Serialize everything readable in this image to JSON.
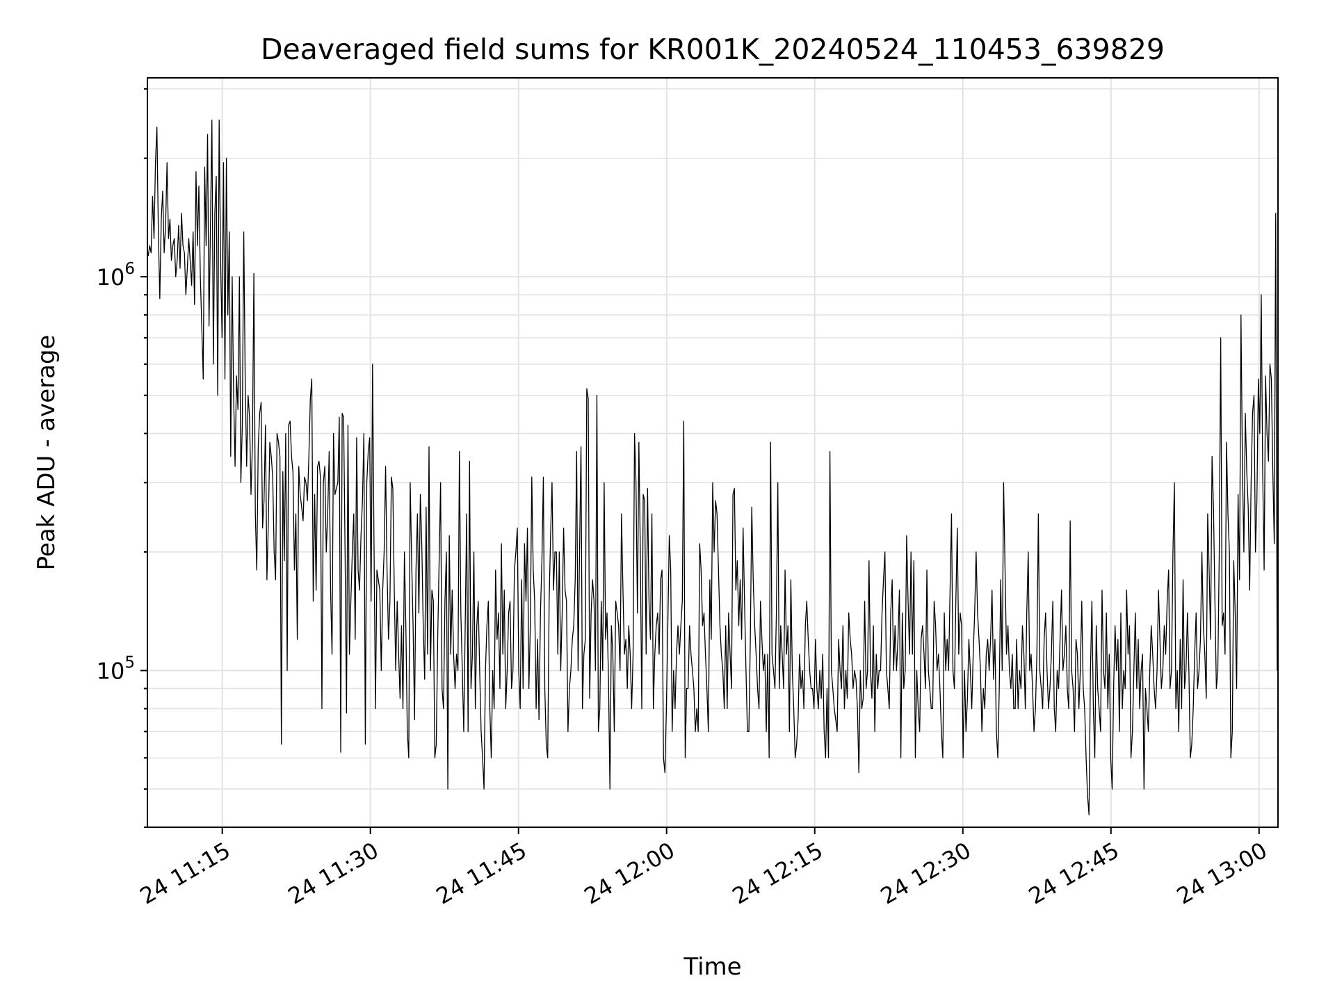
{
  "chart_data": {
    "type": "line",
    "title": "Deaveraged field sums for KR001K_20240524_110453_639829",
    "xlabel": "Time",
    "ylabel": "Peak ADU - average",
    "yscale": "log",
    "ylim": [
      40000,
      3200000
    ],
    "xlim": [
      "2024-05-24 11:07:25",
      "2024-05-24 13:01:55"
    ],
    "grid": true,
    "line_color": "#000000",
    "x_ticks": [
      {
        "time": "2024-05-24 11:15",
        "label": "24 11:15"
      },
      {
        "time": "2024-05-24 11:30",
        "label": "24 11:30"
      },
      {
        "time": "2024-05-24 11:45",
        "label": "24 11:45"
      },
      {
        "time": "2024-05-24 12:00",
        "label": "24 12:00"
      },
      {
        "time": "2024-05-24 12:15",
        "label": "24 12:15"
      },
      {
        "time": "2024-05-24 12:30",
        "label": "24 12:30"
      },
      {
        "time": "2024-05-24 12:45",
        "label": "24 12:45"
      },
      {
        "time": "2024-05-24 13:00",
        "label": "24 13:00"
      }
    ],
    "y_ticks": [
      {
        "value": 100000,
        "base": "10",
        "exp": "5"
      },
      {
        "value": 1000000,
        "base": "10",
        "exp": "6"
      }
    ],
    "series": [
      {
        "x_start": "2024-05-24 11:07:30",
        "x_end": "2024-05-24 13:01:50",
        "values": [
          1130000,
          1200000,
          1150000,
          1600000,
          1250000,
          1950000,
          2400000,
          1300000,
          880000,
          1400000,
          1650000,
          1150000,
          1350000,
          1950000,
          1250000,
          1400000,
          1100000,
          1200000,
          1250000,
          1000000,
          1100000,
          1350000,
          1050000,
          1450000,
          1200000,
          1150000,
          900000,
          1050000,
          1250000,
          1100000,
          950000,
          1300000,
          850000,
          1850000,
          1200000,
          1700000,
          1000000,
          750000,
          550000,
          1900000,
          1200000,
          2300000,
          750000,
          1350000,
          2500000,
          600000,
          1450000,
          1800000,
          500000,
          2500000,
          1100000,
          700000,
          1950000,
          550000,
          2000000,
          800000,
          1300000,
          350000,
          1000000,
          500000,
          330000,
          560000,
          460000,
          1000000,
          300000,
          420000,
          1300000,
          550000,
          330000,
          500000,
          440000,
          280000,
          380000,
          1020000,
          250000,
          180000,
          370000,
          450000,
          480000,
          230000,
          270000,
          420000,
          170000,
          240000,
          380000,
          350000,
          310000,
          200000,
          170000,
          400000,
          380000,
          350000,
          65000,
          320000,
          190000,
          400000,
          100000,
          420000,
          430000,
          350000,
          320000,
          180000,
          250000,
          120000,
          330000,
          280000,
          260000,
          240000,
          310000,
          300000,
          270000,
          350000,
          490000,
          550000,
          150000,
          280000,
          160000,
          330000,
          340000,
          310000,
          80000,
          300000,
          330000,
          200000,
          250000,
          360000,
          160000,
          110000,
          400000,
          280000,
          290000,
          300000,
          440000,
          62000,
          450000,
          440000,
          200000,
          78000,
          420000,
          110000,
          150000,
          200000,
          250000,
          120000,
          390000,
          180000,
          160000,
          220000,
          270000,
          400000,
          65000,
          300000,
          360000,
          390000,
          150000,
          600000,
          210000,
          80000,
          180000,
          170000,
          160000,
          100000,
          160000,
          200000,
          330000,
          180000,
          120000,
          150000,
          310000,
          290000,
          160000,
          100000,
          150000,
          110000,
          85000,
          130000,
          80000,
          200000,
          130000,
          70000,
          60000,
          300000,
          190000,
          130000,
          75000,
          180000,
          250000,
          140000,
          280000,
          210000,
          130000,
          95000,
          260000,
          110000,
          370000,
          100000,
          160000,
          150000,
          60000,
          65000,
          120000,
          190000,
          300000,
          90000,
          80000,
          150000,
          200000,
          50000,
          220000,
          110000,
          160000,
          110000,
          90000,
          110000,
          100000,
          360000,
          140000,
          100000,
          70000,
          130000,
          250000,
          70000,
          340000,
          90000,
          110000,
          200000,
          80000,
          130000,
          150000,
          100000,
          70000,
          60000,
          50000,
          100000,
          130000,
          150000,
          80000,
          60000,
          100000,
          80000,
          180000,
          120000,
          140000,
          90000,
          210000,
          110000,
          160000,
          80000,
          100000,
          140000,
          150000,
          90000,
          100000,
          180000,
          200000,
          230000,
          100000,
          80000,
          170000,
          90000,
          210000,
          150000,
          230000,
          90000,
          130000,
          310000,
          180000,
          150000,
          80000,
          120000,
          75000,
          140000,
          190000,
          310000,
          90000,
          65000,
          60000,
          150000,
          220000,
          300000,
          160000,
          200000,
          200000,
          110000,
          200000,
          100000,
          140000,
          230000,
          160000,
          150000,
          70000,
          90000,
          100000,
          120000,
          130000,
          170000,
          360000,
          100000,
          200000,
          370000,
          80000,
          110000,
          120000,
          520000,
          490000,
          85000,
          140000,
          170000,
          150000,
          100000,
          500000,
          70000,
          80000,
          150000,
          100000,
          300000,
          120000,
          140000,
          95000,
          50000,
          130000,
          110000,
          70000,
          150000,
          140000,
          130000,
          100000,
          250000,
          160000,
          110000,
          120000,
          90000,
          130000,
          110000,
          80000,
          110000,
          400000,
          300000,
          140000,
          380000,
          200000,
          80000,
          280000,
          270000,
          110000,
          290000,
          150000,
          120000,
          250000,
          80000,
          110000,
          130000,
          140000,
          110000,
          170000,
          180000,
          60000,
          55000,
          80000,
          130000,
          220000,
          180000,
          70000,
          100000,
          80000,
          110000,
          130000,
          110000,
          130000,
          150000,
          430000,
          60000,
          90000,
          90000,
          130000,
          110000,
          100000,
          90000,
          70000,
          80000,
          70000,
          210000,
          180000,
          130000,
          140000,
          110000,
          90000,
          70000,
          170000,
          120000,
          300000,
          200000,
          270000,
          250000,
          180000,
          130000,
          110000,
          100000,
          80000,
          130000,
          80000,
          140000,
          110000,
          90000,
          280000,
          290000,
          160000,
          190000,
          130000,
          170000,
          120000,
          230000,
          150000,
          100000,
          70000,
          70000,
          120000,
          260000,
          170000,
          130000,
          110000,
          90000,
          80000,
          150000,
          120000,
          100000,
          110000,
          70000,
          110000,
          60000,
          380000,
          110000,
          100000,
          90000,
          140000,
          300000,
          90000,
          130000,
          110000,
          90000,
          180000,
          110000,
          130000,
          70000,
          170000,
          100000,
          80000,
          60000,
          65000,
          75000,
          110000,
          90000,
          100000,
          80000,
          130000,
          150000,
          120000,
          100000,
          90000,
          90000,
          80000,
          120000,
          90000,
          80000,
          100000,
          85000,
          110000,
          70000,
          60000,
          90000,
          60000,
          360000,
          100000,
          90000,
          80000,
          75000,
          70000,
          120000,
          100000,
          90000,
          130000,
          80000,
          100000,
          85000,
          140000,
          120000,
          110000,
          90000,
          100000,
          95000,
          80000,
          55000,
          100000,
          80000,
          85000,
          150000,
          90000,
          100000,
          190000,
          100000,
          85000,
          130000,
          70000,
          110000,
          90000,
          100000,
          100000,
          140000,
          170000,
          200000,
          100000,
          90000,
          80000,
          140000,
          170000,
          100000,
          130000,
          100000,
          120000,
          160000,
          60000,
          140000,
          90000,
          100000,
          220000,
          150000,
          110000,
          200000,
          110000,
          190000,
          60000,
          100000,
          80000,
          70000,
          120000,
          130000,
          110000,
          90000,
          180000,
          100000,
          90000,
          80000,
          80000,
          150000,
          130000,
          100000,
          110000,
          90000,
          70000,
          60000,
          140000,
          100000,
          120000,
          100000,
          160000,
          250000,
          100000,
          90000,
          150000,
          230000,
          110000,
          140000,
          130000,
          60000,
          100000,
          70000,
          85000,
          120000,
          100000,
          80000,
          110000,
          140000,
          200000,
          140000,
          120000,
          100000,
          70000,
          90000,
          80000,
          110000,
          120000,
          100000,
          120000,
          160000,
          95000,
          120000,
          70000,
          60000,
          90000,
          170000,
          100000,
          300000,
          180000,
          110000,
          130000,
          100000,
          90000,
          110000,
          80000,
          80000,
          120000,
          80000,
          100000,
          90000,
          130000,
          110000,
          80000,
          140000,
          200000,
          100000,
          110000,
          90000,
          70000,
          80000,
          110000,
          250000,
          100000,
          90000,
          80000,
          120000,
          140000,
          100000,
          80000,
          90000,
          110000,
          150000,
          80000,
          70000,
          100000,
          90000,
          120000,
          160000,
          100000,
          110000,
          130000,
          90000,
          80000,
          240000,
          100000,
          90000,
          70000,
          120000,
          110000,
          80000,
          100000,
          150000,
          90000,
          80000,
          60000,
          48000,
          43000,
          100000,
          150000,
          80000,
          60000,
          130000,
          90000,
          80000,
          70000,
          160000,
          100000,
          90000,
          140000,
          80000,
          110000,
          60000,
          50000,
          90000,
          130000,
          100000,
          120000,
          70000,
          140000,
          80000,
          100000,
          90000,
          160000,
          110000,
          130000,
          60000,
          70000,
          100000,
          140000,
          90000,
          120000,
          80000,
          100000,
          110000,
          50000,
          90000,
          80000,
          70000,
          100000,
          130000,
          110000,
          90000,
          80000,
          100000,
          160000,
          120000,
          90000,
          100000,
          130000,
          110000,
          150000,
          180000,
          90000,
          100000,
          200000,
          300000,
          80000,
          100000,
          70000,
          120000,
          80000,
          170000,
          90000,
          100000,
          140000,
          100000,
          60000,
          65000,
          80000,
          110000,
          140000,
          90000,
          100000,
          120000,
          200000,
          130000,
          110000,
          85000,
          250000,
          180000,
          120000,
          350000,
          260000,
          150000,
          90000,
          100000,
          200000,
          700000,
          130000,
          140000,
          110000,
          380000,
          250000,
          200000,
          60000,
          70000,
          190000,
          140000,
          90000,
          280000,
          170000,
          800000,
          330000,
          200000,
          450000,
          320000,
          260000,
          160000,
          300000,
          450000,
          500000,
          200000,
          270000,
          550000,
          400000,
          900000,
          320000,
          180000,
          560000,
          400000,
          340000,
          600000,
          550000,
          320000,
          210000,
          1450000,
          100000
        ]
      }
    ]
  }
}
